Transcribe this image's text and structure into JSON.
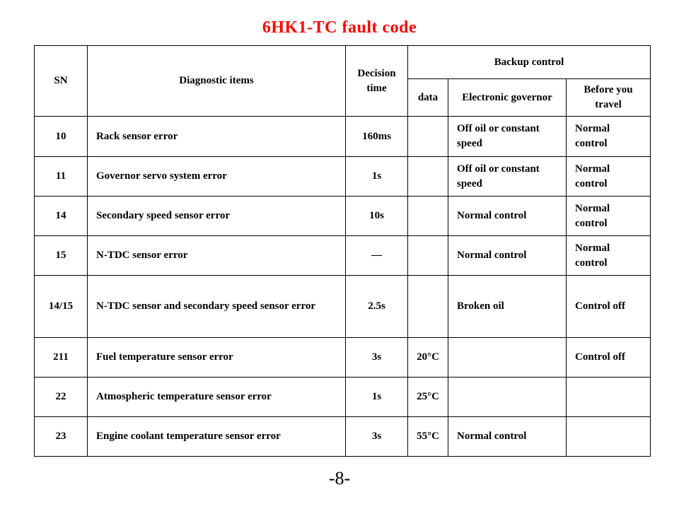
{
  "title": "6HK1-TC fault code",
  "page_number": "-8-",
  "colors": {
    "title": "#ff0000",
    "text": "#000000",
    "border": "#000000",
    "background": "#ffffff"
  },
  "table": {
    "headers": {
      "sn": "SN",
      "diagnostic_items": "Diagnostic items",
      "decision_time": "Decision time",
      "backup_control": "Backup control",
      "data": "data",
      "electronic_governor": "Electronic governor",
      "before_you_travel": "Before you travel"
    },
    "rows": [
      {
        "sn": "10",
        "item": "Rack sensor error",
        "time": "160ms",
        "data": "",
        "governor": "Off oil or constant speed",
        "travel": "Normal control"
      },
      {
        "sn": "11",
        "item": "Governor servo system error",
        "time": "1s",
        "data": "",
        "governor": "Off oil or constant speed",
        "travel": "Normal control"
      },
      {
        "sn": "14",
        "item": "Secondary speed sensor error",
        "time": "10s",
        "data": "",
        "governor": "Normal control",
        "travel": "Normal control"
      },
      {
        "sn": "15",
        "item": "N-TDC sensor error",
        "time": "—",
        "data": "",
        "governor": "Normal control",
        "travel": "Normal control"
      },
      {
        "sn": "14/15",
        "item": "N-TDC sensor and secondary speed sensor error",
        "time": "2.5s",
        "data": "",
        "governor": "Broken oil",
        "travel": "Control off"
      },
      {
        "sn": "211",
        "item": "Fuel temperature sensor error",
        "time": "3s",
        "data": "20°C",
        "governor": "",
        "travel": "Control off"
      },
      {
        "sn": "22",
        "item": "Atmospheric temperature sensor error",
        "time": "1s",
        "data": "25°C",
        "governor": "",
        "travel": ""
      },
      {
        "sn": "23",
        "item": "Engine coolant temperature sensor error",
        "time": "3s",
        "data": "55°C",
        "governor": "Normal control",
        "travel": ""
      }
    ]
  }
}
